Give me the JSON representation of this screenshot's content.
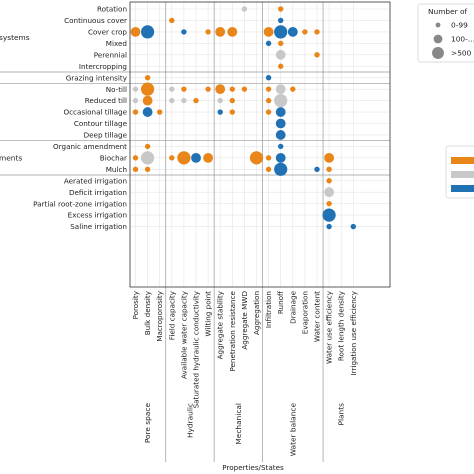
{
  "chart_data": {
    "type": "scatter",
    "xlabel": "Properties/States",
    "ylabel": "",
    "row_groups": [
      {
        "label": "systems",
        "rows": [
          "Rotation",
          "Continuous cover",
          "Cover crop",
          "Mixed",
          "Perennial",
          "Intercropping"
        ]
      },
      {
        "label": "",
        "rows": [
          "Grazing intensity"
        ]
      },
      {
        "label": "",
        "rows": [
          "No-till",
          "Reduced till",
          "Occasional tillage",
          "Contour tillage",
          "Deep tillage"
        ]
      },
      {
        "label": "ments",
        "rows": [
          "Organic amendment",
          "Biochar",
          "Mulch"
        ]
      },
      {
        "label": "",
        "rows": [
          "Aerated irrigation",
          "Deficit irrigation",
          "Partial root-zone irrigation",
          "Excess irrigation",
          "Saline irrigation"
        ]
      }
    ],
    "column_groups": [
      {
        "label": "Pore space",
        "columns": [
          "Porosity",
          "Bulk density",
          "Macroporosity"
        ]
      },
      {
        "label": "Hydraulic",
        "columns": [
          "Field capacity",
          "Available water capacity",
          "Saturated hydraulic conductivity",
          "Wilting point"
        ]
      },
      {
        "label": "Mechanical",
        "columns": [
          "Aggregate stability",
          "Penetration resistance",
          "Aggregate MWD",
          "Aggregation"
        ]
      },
      {
        "label": "Water balance",
        "columns": [
          "Infiltration",
          "Runoff",
          "Drainage",
          "Evaporation",
          "Water content"
        ]
      },
      {
        "label": "Plants",
        "columns": [
          "Water use efficiency",
          "Root length density",
          "Irrigation use efficiency"
        ]
      }
    ],
    "size_legend": {
      "title": "Number of",
      "entries": [
        "0-99",
        "100-…",
        ">500"
      ]
    },
    "colors": {
      "orange": "#e8861a",
      "gray": "#c8c8c8",
      "blue": "#2171b5"
    },
    "points": [
      {
        "row": "Rotation",
        "col": "Aggregate MWD",
        "size": 1,
        "color": "gray"
      },
      {
        "row": "Rotation",
        "col": "Runoff",
        "size": 1,
        "color": "orange"
      },
      {
        "row": "Continuous cover",
        "col": "Field capacity",
        "size": 1,
        "color": "orange"
      },
      {
        "row": "Continuous cover",
        "col": "Runoff",
        "size": 1,
        "color": "blue"
      },
      {
        "row": "Cover crop",
        "col": "Porosity",
        "size": 2,
        "color": "orange"
      },
      {
        "row": "Cover crop",
        "col": "Bulk density",
        "size": 3,
        "color": "blue"
      },
      {
        "row": "Cover crop",
        "col": "Available water capacity",
        "size": 1,
        "color": "blue"
      },
      {
        "row": "Cover crop",
        "col": "Wilting point",
        "size": 1,
        "color": "orange"
      },
      {
        "row": "Cover crop",
        "col": "Aggregate stability",
        "size": 2,
        "color": "orange"
      },
      {
        "row": "Cover crop",
        "col": "Penetration resistance",
        "size": 2,
        "color": "orange"
      },
      {
        "row": "Cover crop",
        "col": "Infiltration",
        "size": 2,
        "color": "orange"
      },
      {
        "row": "Cover crop",
        "col": "Runoff",
        "size": 3,
        "color": "blue"
      },
      {
        "row": "Cover crop",
        "col": "Drainage",
        "size": 2,
        "color": "blue"
      },
      {
        "row": "Cover crop",
        "col": "Evaporation",
        "size": 1,
        "color": "orange"
      },
      {
        "row": "Cover crop",
        "col": "Water content",
        "size": 1,
        "color": "orange"
      },
      {
        "row": "Mixed",
        "col": "Infiltration",
        "size": 1,
        "color": "blue"
      },
      {
        "row": "Mixed",
        "col": "Runoff",
        "size": 1,
        "color": "orange"
      },
      {
        "row": "Perennial",
        "col": "Runoff",
        "size": 2,
        "color": "gray"
      },
      {
        "row": "Perennial",
        "col": "Water content",
        "size": 1,
        "color": "orange"
      },
      {
        "row": "Intercropping",
        "col": "Runoff",
        "size": 1,
        "color": "orange"
      },
      {
        "row": "Grazing intensity",
        "col": "Bulk density",
        "size": 1,
        "color": "orange"
      },
      {
        "row": "Grazing intensity",
        "col": "Infiltration",
        "size": 1,
        "color": "blue"
      },
      {
        "row": "No-till",
        "col": "Porosity",
        "size": 1,
        "color": "gray"
      },
      {
        "row": "No-till",
        "col": "Bulk density",
        "size": 3,
        "color": "orange"
      },
      {
        "row": "No-till",
        "col": "Field capacity",
        "size": 1,
        "color": "gray"
      },
      {
        "row": "No-till",
        "col": "Available water capacity",
        "size": 1,
        "color": "orange"
      },
      {
        "row": "No-till",
        "col": "Wilting point",
        "size": 1,
        "color": "orange"
      },
      {
        "row": "No-till",
        "col": "Aggregate stability",
        "size": 2,
        "color": "orange"
      },
      {
        "row": "No-till",
        "col": "Penetration resistance",
        "size": 1,
        "color": "orange"
      },
      {
        "row": "No-till",
        "col": "Aggregate MWD",
        "size": 1,
        "color": "orange"
      },
      {
        "row": "No-till",
        "col": "Infiltration",
        "size": 1,
        "color": "orange"
      },
      {
        "row": "No-till",
        "col": "Runoff",
        "size": 2,
        "color": "gray"
      },
      {
        "row": "No-till",
        "col": "Drainage",
        "size": 1,
        "color": "orange"
      },
      {
        "row": "Reduced till",
        "col": "Porosity",
        "size": 1,
        "color": "gray"
      },
      {
        "row": "Reduced till",
        "col": "Bulk density",
        "size": 2,
        "color": "orange"
      },
      {
        "row": "Reduced till",
        "col": "Field capacity",
        "size": 1,
        "color": "gray"
      },
      {
        "row": "Reduced till",
        "col": "Available water capacity",
        "size": 1,
        "color": "gray"
      },
      {
        "row": "Reduced till",
        "col": "Saturated hydraulic conductivity",
        "size": 1,
        "color": "orange"
      },
      {
        "row": "Reduced till",
        "col": "Aggregate stability",
        "size": 1,
        "color": "gray"
      },
      {
        "row": "Reduced till",
        "col": "Penetration resistance",
        "size": 1,
        "color": "orange"
      },
      {
        "row": "Reduced till",
        "col": "Infiltration",
        "size": 1,
        "color": "orange"
      },
      {
        "row": "Reduced till",
        "col": "Runoff",
        "size": 3,
        "color": "gray"
      },
      {
        "row": "Occasional tillage",
        "col": "Porosity",
        "size": 1,
        "color": "orange"
      },
      {
        "row": "Occasional tillage",
        "col": "Bulk density",
        "size": 2,
        "color": "blue"
      },
      {
        "row": "Occasional tillage",
        "col": "Macroporosity",
        "size": 1,
        "color": "orange"
      },
      {
        "row": "Occasional tillage",
        "col": "Aggregate stability",
        "size": 1,
        "color": "blue"
      },
      {
        "row": "Occasional tillage",
        "col": "Penetration resistance",
        "size": 1,
        "color": "orange"
      },
      {
        "row": "Occasional tillage",
        "col": "Infiltration",
        "size": 1,
        "color": "orange"
      },
      {
        "row": "Occasional tillage",
        "col": "Runoff",
        "size": 2,
        "color": "blue"
      },
      {
        "row": "Contour tillage",
        "col": "Runoff",
        "size": 2,
        "color": "blue"
      },
      {
        "row": "Deep tillage",
        "col": "Runoff",
        "size": 2,
        "color": "blue"
      },
      {
        "row": "Organic amendment",
        "col": "Bulk density",
        "size": 1,
        "color": "orange"
      },
      {
        "row": "Organic amendment",
        "col": "Runoff",
        "size": 1,
        "color": "blue"
      },
      {
        "row": "Biochar",
        "col": "Porosity",
        "size": 1,
        "color": "orange"
      },
      {
        "row": "Biochar",
        "col": "Bulk density",
        "size": 3,
        "color": "gray"
      },
      {
        "row": "Biochar",
        "col": "Field capacity",
        "size": 1,
        "color": "orange"
      },
      {
        "row": "Biochar",
        "col": "Available water capacity",
        "size": 3,
        "color": "orange"
      },
      {
        "row": "Biochar",
        "col": "Saturated hydraulic conductivity",
        "size": 2,
        "color": "blue"
      },
      {
        "row": "Biochar",
        "col": "Wilting point",
        "size": 2,
        "color": "orange"
      },
      {
        "row": "Biochar",
        "col": "Aggregation",
        "size": 3,
        "color": "orange"
      },
      {
        "row": "Biochar",
        "col": "Infiltration",
        "size": 1,
        "color": "orange"
      },
      {
        "row": "Biochar",
        "col": "Runoff",
        "size": 2,
        "color": "blue"
      },
      {
        "row": "Biochar",
        "col": "Water use efficiency",
        "size": 2,
        "color": "orange"
      },
      {
        "row": "Mulch",
        "col": "Porosity",
        "size": 1,
        "color": "orange"
      },
      {
        "row": "Mulch",
        "col": "Bulk density",
        "size": 1,
        "color": "orange"
      },
      {
        "row": "Mulch",
        "col": "Infiltration",
        "size": 1,
        "color": "orange"
      },
      {
        "row": "Mulch",
        "col": "Runoff",
        "size": 3,
        "color": "blue"
      },
      {
        "row": "Mulch",
        "col": "Water content",
        "size": 1,
        "color": "blue"
      },
      {
        "row": "Mulch",
        "col": "Water use efficiency",
        "size": 1,
        "color": "orange"
      },
      {
        "row": "Aerated irrigation",
        "col": "Water use efficiency",
        "size": 1,
        "color": "orange"
      },
      {
        "row": "Deficit irrigation",
        "col": "Water use efficiency",
        "size": 2,
        "color": "gray"
      },
      {
        "row": "Partial root-zone irrigation",
        "col": "Water use efficiency",
        "size": 1,
        "color": "orange"
      },
      {
        "row": "Excess irrigation",
        "col": "Water use efficiency",
        "size": 3,
        "color": "blue"
      },
      {
        "row": "Saline irrigation",
        "col": "Water use efficiency",
        "size": 1,
        "color": "blue"
      },
      {
        "row": "Saline irrigation",
        "col": "Irrigation use efficiency",
        "size": 1,
        "color": "blue"
      }
    ]
  }
}
